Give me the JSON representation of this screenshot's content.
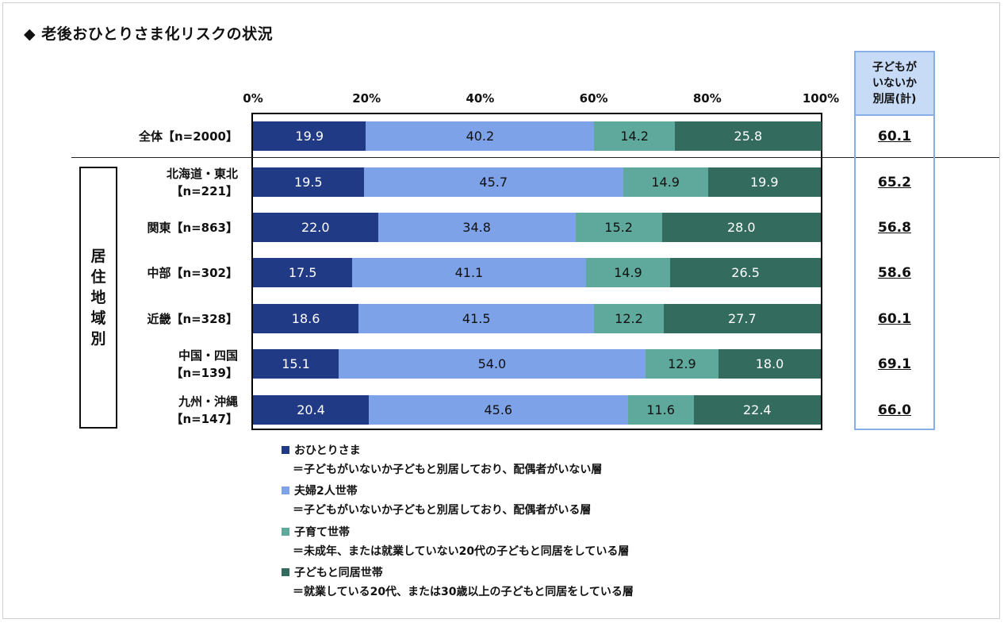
{
  "chart_data": {
    "type": "bar",
    "orientation": "horizontal-stacked-100",
    "title": "◆ 老後おひとりさま化リスクの状況",
    "xlim": [
      0,
      100
    ],
    "xticks": [
      "0%",
      "20%",
      "40%",
      "60%",
      "80%",
      "100%"
    ],
    "legend_placement": "bottom",
    "region_label": "居住地域別",
    "right_column_header": [
      "子どもが",
      "いないか",
      "別居(計)"
    ],
    "categories": [
      {
        "lines": [
          "全体【n=2000】"
        ]
      },
      {
        "lines": [
          "北海道・東北",
          "【n=221】"
        ]
      },
      {
        "lines": [
          "関東【n=863】"
        ]
      },
      {
        "lines": [
          "中部【n=302】"
        ]
      },
      {
        "lines": [
          "近畿【n=328】"
        ]
      },
      {
        "lines": [
          "中国・四国",
          "【n=139】"
        ]
      },
      {
        "lines": [
          "九州・沖縄",
          "【n=147】"
        ]
      }
    ],
    "series": [
      {
        "name": "おひとりさま",
        "color": "#213a86",
        "text_color": "#ffffff",
        "values": [
          19.9,
          19.5,
          22.0,
          17.5,
          18.6,
          15.1,
          20.4
        ],
        "labels": [
          "19.9",
          "19.5",
          "22.0",
          "17.5",
          "18.6",
          "15.1",
          "20.4"
        ]
      },
      {
        "name": "夫婦2人世帯",
        "color": "#7da2e8",
        "text_color": "#111111",
        "values": [
          40.2,
          45.7,
          34.8,
          41.1,
          41.5,
          54.0,
          45.6
        ],
        "labels": [
          "40.2",
          "45.7",
          "34.8",
          "41.1",
          "41.5",
          "54.0",
          "45.6"
        ]
      },
      {
        "name": "子育て世帯",
        "color": "#5ea89c",
        "text_color": "#111111",
        "values": [
          14.2,
          14.9,
          15.2,
          14.9,
          12.2,
          12.9,
          11.6
        ],
        "labels": [
          "14.2",
          "14.9",
          "15.2",
          "14.9",
          "12.2",
          "12.9",
          "11.6"
        ]
      },
      {
        "name": "子どもと同居世帯",
        "color": "#336b5f",
        "text_color": "#ffffff",
        "values": [
          25.8,
          19.9,
          28.0,
          26.5,
          27.7,
          18.0,
          22.4
        ],
        "labels": [
          "25.8",
          "19.9",
          "28.0",
          "26.5",
          "27.7",
          "18.0",
          "22.4"
        ]
      }
    ],
    "right_column_values": [
      "60.1",
      "65.2",
      "56.8",
      "58.6",
      "60.1",
      "69.1",
      "66.0"
    ],
    "legend": [
      {
        "name": "おひとりさま",
        "desc": "＝子どもがいないか子どもと別居しており、配偶者がいない層"
      },
      {
        "name": "夫婦2人世帯",
        "desc": "＝子どもがいないか子どもと別居しており、配偶者がいる層"
      },
      {
        "name": "子育て世帯",
        "desc": "＝未成年、または就業していない20代の子どもと同居をしている層"
      },
      {
        "name": "子どもと同居世帯",
        "desc": "＝就業している20代、または30歳以上の子どもと同居をしている層"
      }
    ]
  }
}
